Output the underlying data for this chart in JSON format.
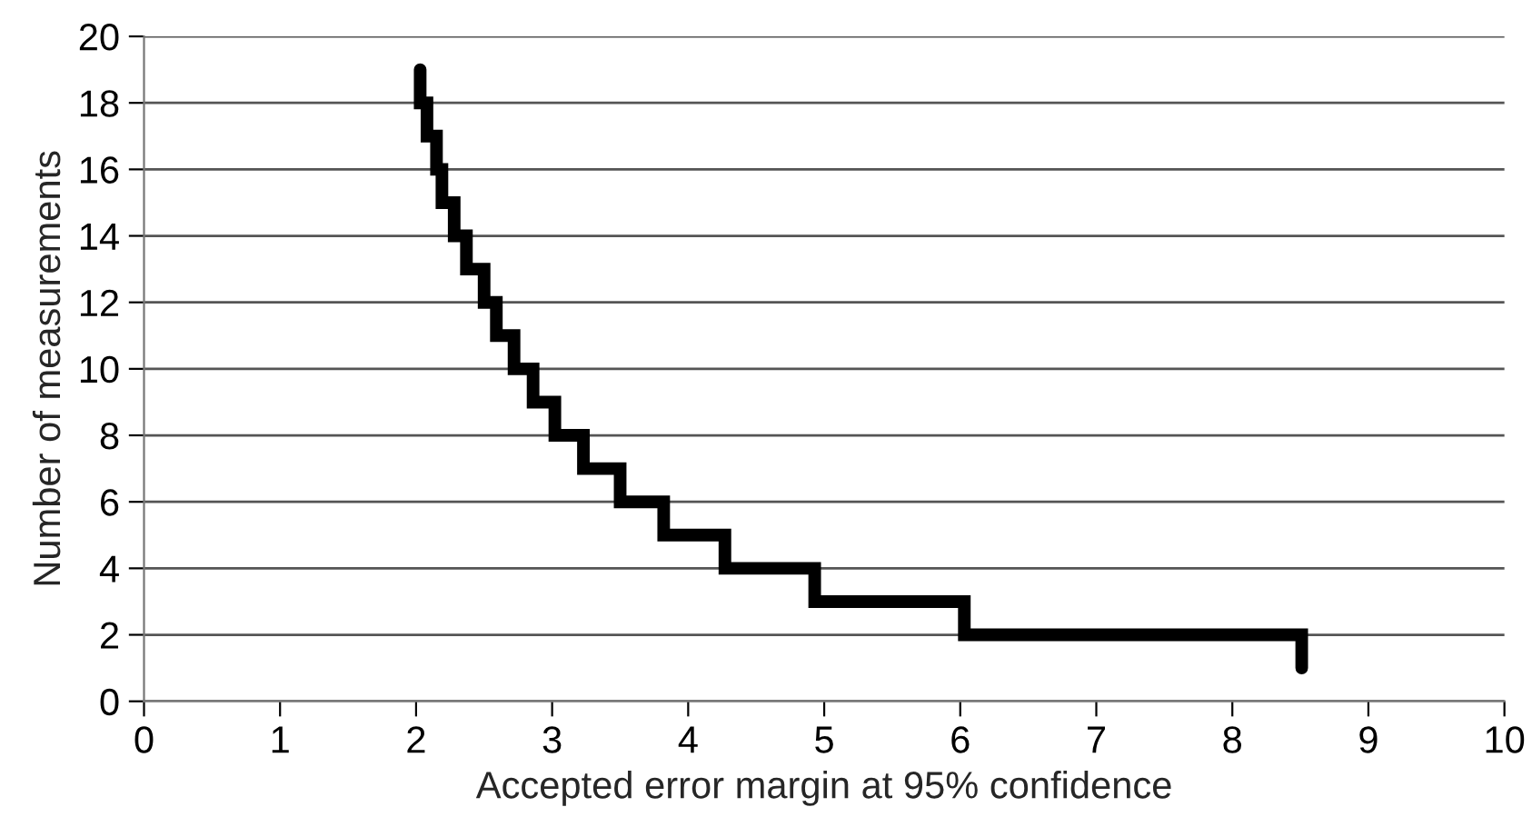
{
  "chart_data": {
    "type": "step",
    "xlabel": "Accepted error margin at 95% confidence",
    "ylabel": "Number of measurements",
    "x": [
      2.03,
      2.03,
      2.08,
      2.15,
      2.19,
      2.28,
      2.37,
      2.5,
      2.59,
      2.72,
      2.86,
      3.02,
      3.23,
      3.5,
      3.82,
      4.27,
      4.93,
      6.03,
      8.51
    ],
    "values": [
      19,
      18,
      17,
      16,
      15,
      14,
      13,
      12,
      11,
      10,
      9,
      8,
      7,
      6,
      5,
      4,
      3,
      2,
      1
    ],
    "color": "#000000",
    "xlim": [
      0,
      10
    ],
    "xticks": [
      0,
      1,
      2,
      3,
      4,
      5,
      6,
      7,
      8,
      9,
      10
    ],
    "ylim": [
      0,
      20
    ],
    "yticks": [
      0,
      2,
      4,
      6,
      8,
      10,
      12,
      14,
      16,
      18,
      20
    ],
    "grid": "y",
    "legend": false,
    "marker": "none",
    "line_style": "solid"
  }
}
